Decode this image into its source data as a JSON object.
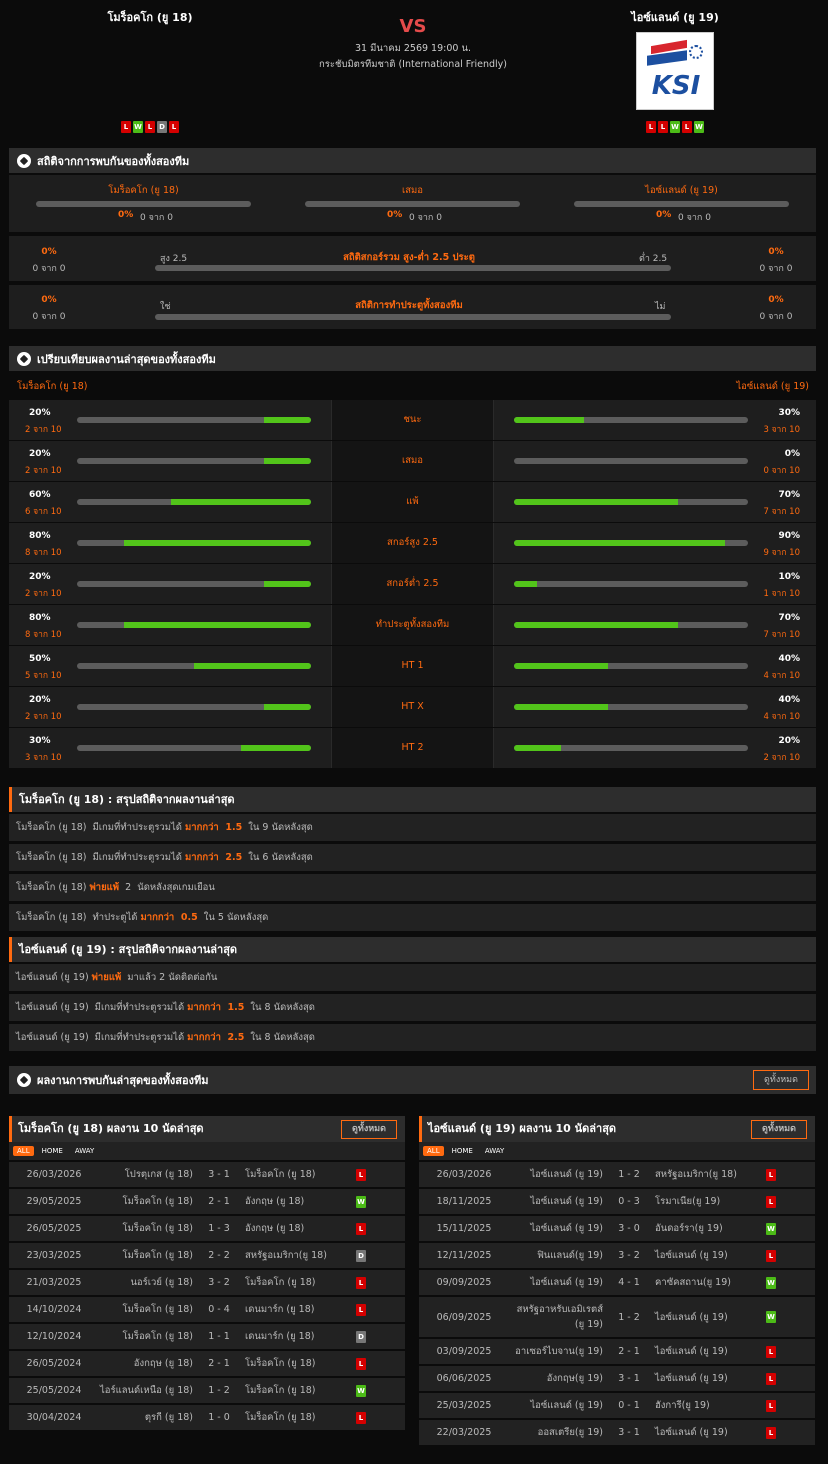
{
  "header": {
    "home_team": "โมร็อคโก (ยู 18)",
    "vs": "VS",
    "away_team": "ไอซ์แลนด์ (ยู 19)",
    "datetime": "31 มีนาคม 2569 19:00 น.",
    "competition": "กระชับมิตรทีมชาติ (International Friendly)",
    "away_logo_text": "KSI",
    "home_form": [
      "L",
      "W",
      "L",
      "D",
      "L"
    ],
    "away_form": [
      "L",
      "L",
      "W",
      "L",
      "W"
    ]
  },
  "h2h_stats": {
    "title": "สถิติจากการพบกันของทั้งสองทีม",
    "cols": [
      {
        "label": "โมร็อคโก (ยู 18)",
        "pct": "0%",
        "count": "0 จาก 0"
      },
      {
        "label": "เสมอ",
        "pct": "0%",
        "count": "0 จาก 0"
      },
      {
        "label": "ไอซ์แลนด์ (ยู 19)",
        "pct": "0%",
        "count": "0 จาก 0"
      }
    ],
    "ou": {
      "title": "สถิติสกอร์รวม สูง-ต่ำ 2.5 ประตู",
      "left_label": "สูง 2.5",
      "right_label": "ต่ำ 2.5",
      "left_pct": "0%",
      "left_count": "0 จาก 0",
      "right_pct": "0%",
      "right_count": "0 จาก 0"
    },
    "btts": {
      "title": "สถิติการทำประตูทั้งสองทีม",
      "left_label": "ใช่",
      "right_label": "ไม่",
      "left_pct": "0%",
      "left_count": "0 จาก 0",
      "right_pct": "0%",
      "right_count": "0 จาก 0"
    }
  },
  "compare": {
    "title": "เปรียบเทียบผลงานล่าสุดของทั้งสองทีม",
    "home": "โมร็อคโก (ยู 18)",
    "away": "ไอซ์แลนด์ (ยู 19)",
    "rows": [
      {
        "label": "ชนะ",
        "home_pct": 20,
        "home_count": "2 จาก 10",
        "away_pct": 30,
        "away_count": "3 จาก 10"
      },
      {
        "label": "เสมอ",
        "home_pct": 20,
        "home_count": "2 จาก 10",
        "away_pct": 0,
        "away_count": "0 จาก 10"
      },
      {
        "label": "แพ้",
        "home_pct": 60,
        "home_count": "6 จาก 10",
        "away_pct": 70,
        "away_count": "7 จาก 10"
      },
      {
        "label": "สกอร์สูง 2.5",
        "home_pct": 80,
        "home_count": "8 จาก 10",
        "away_pct": 90,
        "away_count": "9 จาก 10"
      },
      {
        "label": "สกอร์ต่ำ 2.5",
        "home_pct": 20,
        "home_count": "2 จาก 10",
        "away_pct": 10,
        "away_count": "1 จาก 10"
      },
      {
        "label": "ทำประตูทั้งสองทีม",
        "home_pct": 80,
        "home_count": "8 จาก 10",
        "away_pct": 70,
        "away_count": "7 จาก 10"
      },
      {
        "label": "HT 1",
        "home_pct": 50,
        "home_count": "5 จาก 10",
        "away_pct": 40,
        "away_count": "4 จาก 10"
      },
      {
        "label": "HT X",
        "home_pct": 20,
        "home_count": "2 จาก 10",
        "away_pct": 40,
        "away_count": "4 จาก 10"
      },
      {
        "label": "HT 2",
        "home_pct": 30,
        "home_count": "3 จาก 10",
        "away_pct": 20,
        "away_count": "2 จาก 10"
      }
    ]
  },
  "summary_home": {
    "title": "โมร็อคโก (ยู 18) : สรุปสถิติจากผลงานล่าสุด",
    "rows": [
      [
        {
          "t": "โมร็อคโก (ยู 18)  มีเกมที่ทำประตูรวมได้ "
        },
        {
          "t": "มากกว่า  1.5",
          "hl": true
        },
        {
          "t": "  ใน 9 นัดหลังสุด"
        }
      ],
      [
        {
          "t": "โมร็อคโก (ยู 18)  มีเกมที่ทำประตูรวมได้ "
        },
        {
          "t": "มากกว่า  2.5",
          "hl": true
        },
        {
          "t": "  ใน 6 นัดหลังสุด"
        }
      ],
      [
        {
          "t": "โมร็อคโก (ยู 18) "
        },
        {
          "t": "พ่ายแพ้",
          "hl": true
        },
        {
          "t": "  2  นัดหลังสุดเกมเยือน"
        }
      ],
      [
        {
          "t": "โมร็อคโก (ยู 18)  ทำประตูได้ "
        },
        {
          "t": "มากกว่า  0.5",
          "hl": true
        },
        {
          "t": "  ใน 5 นัดหลังสุด"
        }
      ]
    ]
  },
  "summary_away": {
    "title": "ไอซ์แลนด์ (ยู 19) : สรุปสถิติจากผลงานล่าสุด",
    "rows": [
      [
        {
          "t": "ไอซ์แลนด์ (ยู 19) "
        },
        {
          "t": "พ่ายแพ้",
          "hl": true
        },
        {
          "t": "  มาแล้ว 2 นัดติดต่อกัน"
        }
      ],
      [
        {
          "t": "ไอซ์แลนด์ (ยู 19)  มีเกมที่ทำประตูรวมได้ "
        },
        {
          "t": "มากกว่า  1.5",
          "hl": true
        },
        {
          "t": "  ใน 8 นัดหลังสุด"
        }
      ],
      [
        {
          "t": "ไอซ์แลนด์ (ยู 19)  มีเกมที่ทำประตูรวมได้ "
        },
        {
          "t": "มากกว่า  2.5",
          "hl": true
        },
        {
          "t": "  ใน 8 นัดหลังสุด"
        }
      ]
    ]
  },
  "h2h_results": {
    "title": "ผลงานการพบกันล่าสุดของทั้งสองทีม",
    "view_all": "ดูทั้งหมด"
  },
  "tabs": [
    "ALL",
    "HOME",
    "AWAY"
  ],
  "home_last": {
    "title": "โมร็อคโก (ยู 18) ผลงาน 10 นัดล่าสุด",
    "view_all": "ดูทั้งหมด",
    "rows": [
      [
        "26/03/2026",
        "โปรตุเกส (ยู 18)",
        "3 - 1",
        "โมร็อคโก (ยู 18)",
        "L"
      ],
      [
        "29/05/2025",
        "โมร็อคโก (ยู 18)",
        "2 - 1",
        "อังกฤษ (ยู 18)",
        "W"
      ],
      [
        "26/05/2025",
        "โมร็อคโก (ยู 18)",
        "1 - 3",
        "อังกฤษ (ยู 18)",
        "L"
      ],
      [
        "23/03/2025",
        "โมร็อคโก (ยู 18)",
        "2 - 2",
        "สหรัฐอเมริกา(ยู 18)",
        "D"
      ],
      [
        "21/03/2025",
        "นอร์เวย์ (ยู 18)",
        "3 - 2",
        "โมร็อคโก (ยู 18)",
        "L"
      ],
      [
        "14/10/2024",
        "โมร็อคโก (ยู 18)",
        "0 - 4",
        "เดนมาร์ก (ยู 18)",
        "L"
      ],
      [
        "12/10/2024",
        "โมร็อคโก (ยู 18)",
        "1 - 1",
        "เดนมาร์ก (ยู 18)",
        "D"
      ],
      [
        "26/05/2024",
        "อังกฤษ (ยู 18)",
        "2 - 1",
        "โมร็อคโก (ยู 18)",
        "L"
      ],
      [
        "25/05/2024",
        "ไอร์แลนด์เหนือ (ยู 18)",
        "1 - 2",
        "โมร็อคโก (ยู 18)",
        "W"
      ],
      [
        "30/04/2024",
        "ตุรกี (ยู 18)",
        "1 - 0",
        "โมร็อคโก (ยู 18)",
        "L"
      ]
    ]
  },
  "away_last": {
    "title": "ไอซ์แลนด์ (ยู 19) ผลงาน 10 นัดล่าสุด",
    "view_all": "ดูทั้งหมด",
    "rows": [
      [
        "26/03/2026",
        "ไอซ์แลนด์ (ยู 19)",
        "1 - 2",
        "สหรัฐอเมริกา(ยู 18)",
        "L"
      ],
      [
        "18/11/2025",
        "ไอซ์แลนด์ (ยู 19)",
        "0 - 3",
        "โรมาเนีย(ยู 19)",
        "L"
      ],
      [
        "15/11/2025",
        "ไอซ์แลนด์ (ยู 19)",
        "3 - 0",
        "อันดอร์รา(ยู 19)",
        "W"
      ],
      [
        "12/11/2025",
        "ฟินแลนด์(ยู 19)",
        "3 - 2",
        "ไอซ์แลนด์ (ยู 19)",
        "L"
      ],
      [
        "09/09/2025",
        "ไอซ์แลนด์ (ยู 19)",
        "4 - 1",
        "คาซัคสถาน(ยู 19)",
        "W"
      ],
      [
        "06/09/2025",
        "สหรัฐอาหรับเอมิเรตส์ (ยู 19)",
        "1 - 2",
        "ไอซ์แลนด์ (ยู 19)",
        "W"
      ],
      [
        "03/09/2025",
        "อาเซอร์ไบจาน(ยู 19)",
        "2 - 1",
        "ไอซ์แลนด์ (ยู 19)",
        "L"
      ],
      [
        "06/06/2025",
        "อังกฤษ(ยู 19)",
        "3 - 1",
        "ไอซ์แลนด์ (ยู 19)",
        "L"
      ],
      [
        "25/03/2025",
        "ไอซ์แลนด์ (ยู 19)",
        "0 - 1",
        "ฮังการี(ยู 19)",
        "L"
      ],
      [
        "22/03/2025",
        "ออสเตรีย(ยู 19)",
        "3 - 1",
        "ไอซ์แลนด์ (ยู 19)",
        "L"
      ]
    ]
  },
  "colors": {
    "accent": "#ff6a10",
    "win": "#4cbb17",
    "loss": "#d40000",
    "draw": "#777777",
    "bar_fill": "#52c41a"
  }
}
